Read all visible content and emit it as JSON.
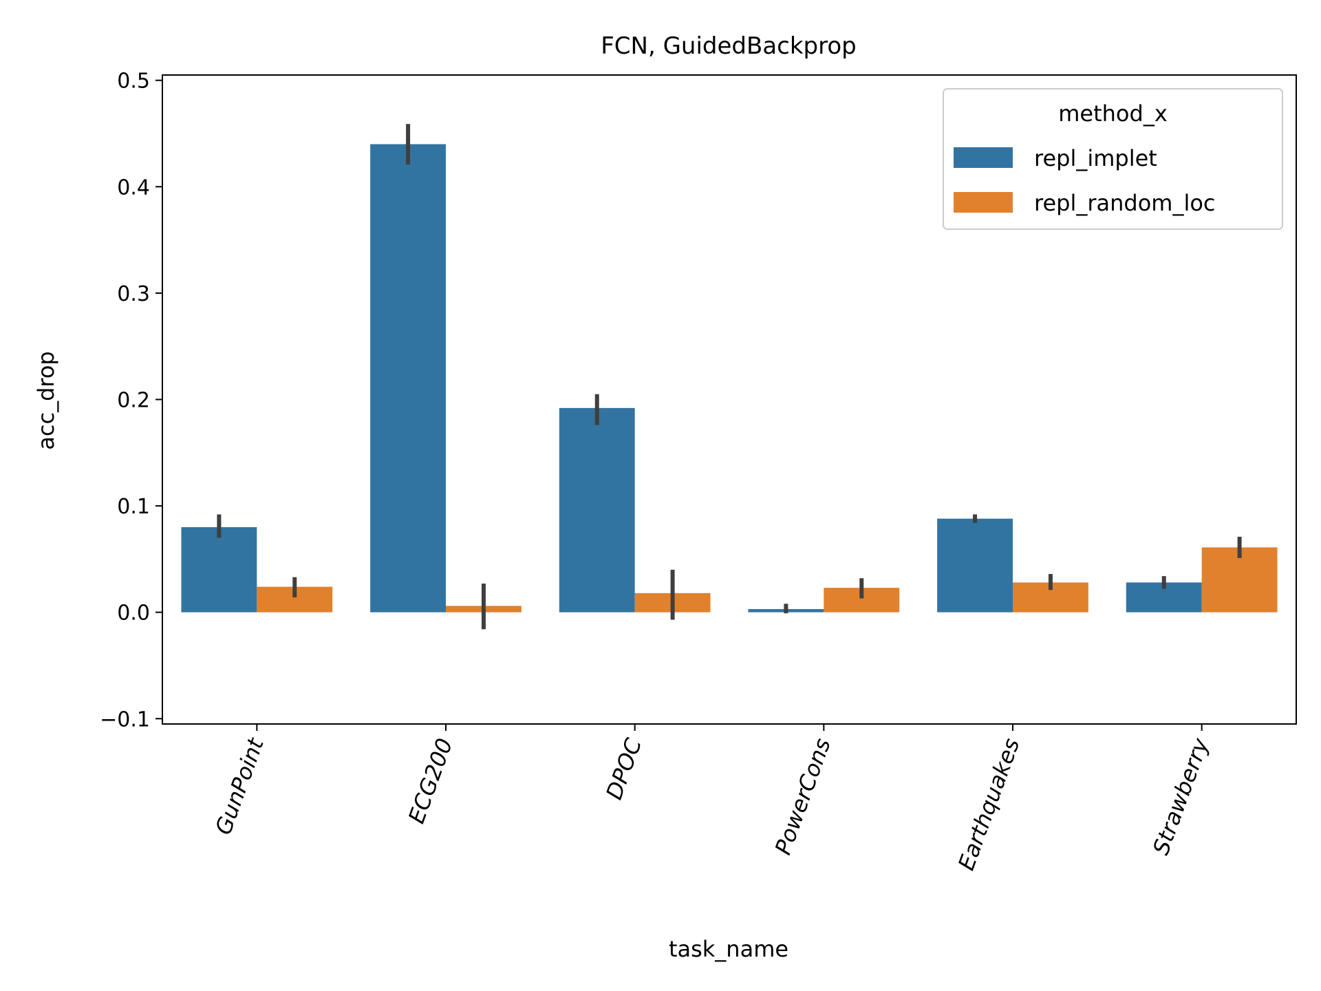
{
  "chart_data": {
    "type": "bar",
    "title": "FCN, GuidedBackprop",
    "xlabel": "task_name",
    "ylabel": "acc_drop",
    "categories": [
      "GunPoint",
      "ECG200",
      "DPOC",
      "PowerCons",
      "Earthquakes",
      "Strawberry"
    ],
    "ylim": [
      -0.105,
      0.505
    ],
    "yticks": [
      -0.1,
      0.0,
      0.1,
      0.2,
      0.3,
      0.4,
      0.5
    ],
    "ytick_labels": [
      "−0.1",
      "0.0",
      "0.1",
      "0.2",
      "0.3",
      "0.4",
      "0.5"
    ],
    "grid": false,
    "legend": {
      "title": "method_x",
      "position": "top-right"
    },
    "series": [
      {
        "name": "repl_implet",
        "color": "#3274a1",
        "values": [
          0.08,
          0.44,
          0.192,
          0.003,
          0.088,
          0.028
        ],
        "err_low": [
          0.07,
          0.421,
          0.176,
          -0.001,
          0.084,
          0.022
        ],
        "err_high": [
          0.092,
          0.459,
          0.205,
          0.008,
          0.092,
          0.034
        ]
      },
      {
        "name": "repl_random_loc",
        "color": "#e1812c",
        "values": [
          0.024,
          0.006,
          0.018,
          0.023,
          0.028,
          0.061
        ],
        "err_low": [
          0.014,
          -0.016,
          -0.007,
          0.013,
          0.021,
          0.051
        ],
        "err_high": [
          0.033,
          0.027,
          0.04,
          0.032,
          0.036,
          0.071
        ]
      }
    ]
  }
}
